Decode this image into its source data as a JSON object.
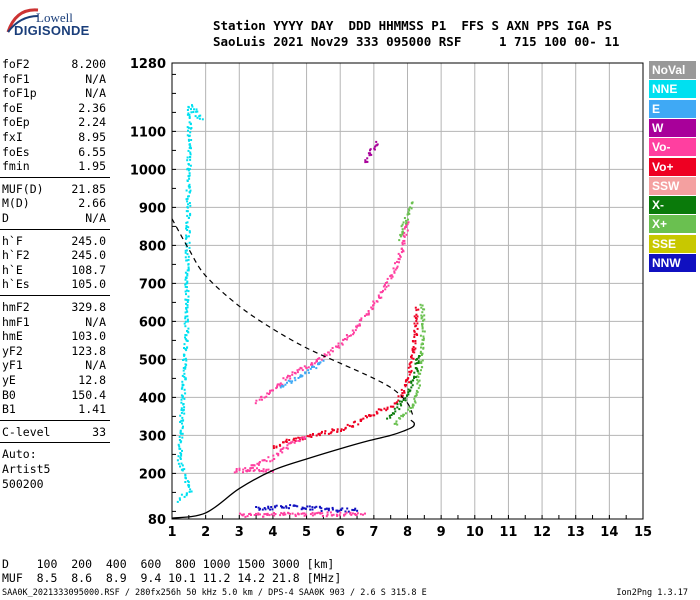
{
  "logo": {
    "line1": "Lowell",
    "line2": "DIGISONDE"
  },
  "header": {
    "line1": "Station YYYY DAY  DDD HHMMSS P1  FFS S AXN PPS IGA PS",
    "line2": "SaoLuis 2021 Nov29 333 095000 RSF     1 715 100 00- 11"
  },
  "params": {
    "group1": [
      {
        "k": "foF2",
        "v": "8.200"
      },
      {
        "k": "foF1",
        "v": "N/A"
      },
      {
        "k": "foF1p",
        "v": "N/A"
      },
      {
        "k": "foE",
        "v": "2.36"
      },
      {
        "k": "foEp",
        "v": "2.24"
      },
      {
        "k": "fxI",
        "v": "8.95"
      },
      {
        "k": "foEs",
        "v": "6.55"
      },
      {
        "k": "fmin",
        "v": "1.95"
      }
    ],
    "group2": [
      {
        "k": "MUF(D)",
        "v": "21.85"
      },
      {
        "k": "M(D)",
        "v": "2.66"
      },
      {
        "k": "D",
        "v": "N/A"
      }
    ],
    "group3": [
      {
        "k": "h`F",
        "v": "245.0"
      },
      {
        "k": "h`F2",
        "v": "245.0"
      },
      {
        "k": "h`E",
        "v": "108.7"
      },
      {
        "k": "h`Es",
        "v": "105.0"
      }
    ],
    "group4": [
      {
        "k": "hmF2",
        "v": "329.8"
      },
      {
        "k": "hmF1",
        "v": "N/A"
      },
      {
        "k": "hmE",
        "v": "103.0"
      },
      {
        "k": "yF2",
        "v": "123.8"
      },
      {
        "k": "yF1",
        "v": "N/A"
      },
      {
        "k": "yE",
        "v": "12.8"
      },
      {
        "k": "B0",
        "v": "150.4"
      },
      {
        "k": "B1",
        "v": "1.41"
      }
    ],
    "clevel": {
      "k": "C-level",
      "v": "33"
    },
    "auto": [
      "Auto:",
      "Artist5",
      "500200"
    ]
  },
  "legend": [
    {
      "label": "NoVal",
      "color": "#999999"
    },
    {
      "label": "NNE",
      "color": "#00e0f0"
    },
    {
      "label": "E",
      "color": "#3fa9f5"
    },
    {
      "label": "W",
      "color": "#a8009a"
    },
    {
      "label": "Vo-",
      "color": "#ff3fa0"
    },
    {
      "label": "Vo+",
      "color": "#ee0022"
    },
    {
      "label": "SSW",
      "color": "#f4a0a0"
    },
    {
      "label": "X-",
      "color": "#0a7a0a"
    },
    {
      "label": "X+",
      "color": "#6ac050"
    },
    {
      "label": "SSE",
      "color": "#c8c800"
    },
    {
      "label": "NNW",
      "color": "#1010c0"
    }
  ],
  "dmuf": {
    "line1": "D    100  200  400  600  800 1000 1500 3000 [km]",
    "line2": "MUF  8.5  8.6  8.9  9.4 10.1 11.2 14.2 21.8 [MHz]"
  },
  "footer": {
    "left": "SAA0K_2021333095000.RSF / 280fx256h 50 kHz 5.0 km / DPS-4 SAA0K 903 / 2.6 S 315.8 E",
    "right": "Ion2Png 1.3.17"
  },
  "chart_data": {
    "type": "scatter",
    "x_axis": {
      "min": 1,
      "max": 15,
      "ticks": [
        1,
        2,
        3,
        4,
        5,
        6,
        7,
        8,
        9,
        10,
        11,
        12,
        13,
        14,
        15
      ]
    },
    "y_axis": {
      "min": 80,
      "max": 1280,
      "ticks": [
        80,
        200,
        300,
        400,
        500,
        600,
        700,
        800,
        900,
        1000,
        1100,
        1280
      ]
    },
    "grid": true,
    "profile_solid": [
      [
        1.0,
        82
      ],
      [
        2.0,
        96
      ],
      [
        3.0,
        160
      ],
      [
        4.0,
        208
      ],
      [
        5.0,
        238
      ],
      [
        6.0,
        265
      ],
      [
        6.8,
        285
      ],
      [
        7.5,
        300
      ],
      [
        7.9,
        312
      ],
      [
        8.15,
        322
      ],
      [
        8.2,
        332
      ],
      [
        8.1,
        340
      ]
    ],
    "profile_dashed": [
      [
        1.0,
        870
      ],
      [
        1.5,
        790
      ],
      [
        2.0,
        720
      ],
      [
        3.0,
        640
      ],
      [
        4.0,
        580
      ],
      [
        5.0,
        530
      ],
      [
        6.0,
        490
      ],
      [
        7.0,
        450
      ],
      [
        7.6,
        420
      ],
      [
        8.0,
        385
      ],
      [
        8.15,
        355
      ]
    ],
    "traces": [
      {
        "series": "Vo+",
        "points": [
          [
            4.0,
            270
          ],
          [
            4.5,
            290
          ],
          [
            5.0,
            298
          ],
          [
            5.5,
            310
          ],
          [
            6.0,
            318
          ],
          [
            6.5,
            335
          ],
          [
            7.0,
            360
          ],
          [
            7.5,
            380
          ],
          [
            7.8,
            410
          ],
          [
            8.0,
            450
          ],
          [
            8.1,
            500
          ],
          [
            8.2,
            560
          ],
          [
            8.25,
            640
          ]
        ]
      },
      {
        "series": "Vo-",
        "points": [
          [
            3.2,
            215
          ],
          [
            3.5,
            225
          ],
          [
            4.0,
            245
          ],
          [
            4.3,
            265
          ],
          [
            4.6,
            285
          ],
          [
            5.0,
            300
          ]
        ]
      },
      {
        "series": "X+",
        "points": [
          [
            7.6,
            330
          ],
          [
            7.9,
            360
          ],
          [
            8.2,
            390
          ],
          [
            8.3,
            430
          ],
          [
            8.35,
            480
          ],
          [
            8.4,
            540
          ],
          [
            8.45,
            600
          ],
          [
            8.4,
            650
          ]
        ]
      },
      {
        "series": "X-",
        "points": [
          [
            7.4,
            350
          ],
          [
            7.7,
            380
          ],
          [
            8.0,
            410
          ],
          [
            8.2,
            460
          ],
          [
            8.3,
            520
          ]
        ]
      },
      {
        "series": "Vo-",
        "points": [
          [
            3.5,
            390
          ],
          [
            4.5,
            460
          ],
          [
            5.5,
            510
          ],
          [
            6.0,
            545
          ],
          [
            6.5,
            590
          ],
          [
            7.0,
            650
          ],
          [
            7.5,
            720
          ],
          [
            7.8,
            790
          ],
          [
            8.0,
            870
          ]
        ]
      },
      {
        "series": "X+",
        "points": [
          [
            7.7,
            820
          ],
          [
            7.9,
            860
          ],
          [
            8.0,
            890
          ],
          [
            8.1,
            920
          ]
        ]
      },
      {
        "series": "W",
        "points": [
          [
            6.7,
            1020
          ],
          [
            6.9,
            1050
          ],
          [
            7.1,
            1080
          ]
        ]
      },
      {
        "series": "NNW",
        "points": [
          [
            3.5,
            110
          ],
          [
            4.0,
            112
          ],
          [
            4.5,
            115
          ],
          [
            5.0,
            112
          ],
          [
            5.5,
            108
          ],
          [
            6.0,
            106
          ],
          [
            6.5,
            104
          ]
        ]
      },
      {
        "series": "Vo-",
        "points": [
          [
            3.0,
            92
          ],
          [
            4.0,
            95
          ],
          [
            5.0,
            95
          ],
          [
            6.0,
            95
          ],
          [
            6.7,
            92
          ]
        ]
      },
      {
        "series": "NNE",
        "points": [
          [
            1.2,
            130
          ],
          [
            1.5,
            160
          ],
          [
            1.2,
            235
          ],
          [
            1.4,
            570
          ],
          [
            1.5,
            1170
          ],
          [
            1.9,
            1130
          ]
        ]
      },
      {
        "series": "Vo-",
        "points": [
          [
            2.8,
            210
          ],
          [
            3.5,
            212
          ],
          [
            4.0,
            212
          ]
        ]
      },
      {
        "series": "E",
        "points": [
          [
            4.2,
            430
          ],
          [
            4.8,
            460
          ],
          [
            5.5,
            500
          ]
        ]
      }
    ]
  }
}
